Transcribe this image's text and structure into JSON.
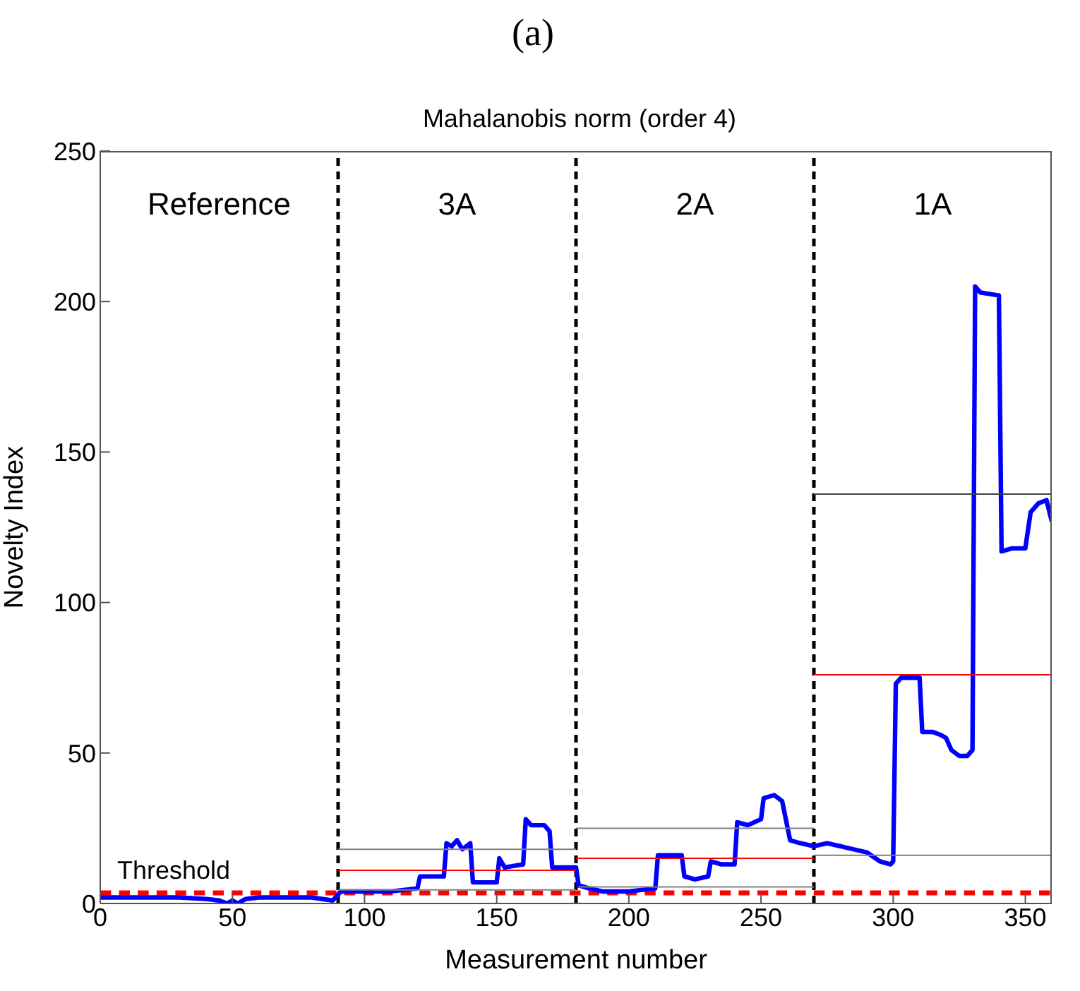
{
  "chart_data": {
    "type": "line",
    "title": "Mahalanobis norm (order 4)",
    "subtitle": "(a)",
    "xlabel": "Measurement number",
    "ylabel": "Novelty Index",
    "xlim": [
      0,
      360
    ],
    "ylim": [
      0,
      250
    ],
    "xticks": [
      0,
      50,
      100,
      150,
      200,
      250,
      300,
      350
    ],
    "yticks": [
      0,
      50,
      100,
      150,
      200,
      250
    ],
    "marker": "none",
    "line_style": "solid",
    "series": [
      {
        "color": "#0000ff",
        "x": [
          0,
          10,
          20,
          30,
          40,
          45,
          48,
          50,
          52,
          55,
          60,
          70,
          80,
          88,
          90,
          91,
          100,
          110,
          120,
          121,
          130,
          131,
          133,
          135,
          137,
          140,
          141,
          150,
          151,
          153,
          160,
          161,
          163,
          168,
          170,
          171,
          180,
          181,
          185,
          190,
          195,
          200,
          210,
          211,
          220,
          221,
          225,
          230,
          231,
          235,
          240,
          241,
          245,
          250,
          251,
          255,
          258,
          261,
          265,
          270,
          275,
          280,
          285,
          290,
          295,
          299,
          300,
          301,
          303,
          310,
          311,
          315,
          318,
          320,
          322,
          325,
          328,
          330,
          331,
          333,
          340,
          341,
          345,
          350,
          352,
          355,
          358,
          360
        ],
        "values": [
          2,
          2,
          2,
          2,
          1.5,
          1,
          0,
          1,
          0,
          1.5,
          2,
          2,
          2,
          1,
          3,
          4,
          4,
          4,
          5,
          9,
          9,
          20,
          19,
          21,
          18,
          20,
          7,
          7,
          15,
          12,
          13,
          28,
          26,
          26,
          24,
          12,
          12,
          6,
          5,
          4,
          4,
          4,
          5,
          16,
          16,
          9,
          8,
          9,
          14,
          13,
          13,
          27,
          26,
          28,
          35,
          36,
          34,
          21,
          20,
          19,
          20,
          19,
          18,
          17,
          14,
          13,
          14,
          73,
          75,
          75,
          57,
          57,
          56,
          55,
          51,
          49,
          49,
          51,
          205,
          203,
          202,
          117,
          118,
          118,
          130,
          133,
          134,
          127
        ]
      },
      {
        "type": "line",
        "color": "#808080",
        "x": [
          90,
          180
        ],
        "values": [
          18,
          18
        ]
      },
      {
        "type": "line",
        "color": "#ff0000",
        "x": [
          90,
          180
        ],
        "values": [
          11,
          11
        ]
      },
      {
        "type": "line",
        "color": "#808080",
        "x": [
          90,
          180
        ],
        "values": [
          4.5,
          4.5
        ]
      },
      {
        "type": "line",
        "color": "#808080",
        "x": [
          180,
          270
        ],
        "values": [
          25,
          25
        ]
      },
      {
        "type": "line",
        "color": "#ff0000",
        "x": [
          180,
          270
        ],
        "values": [
          15,
          15
        ]
      },
      {
        "type": "line",
        "color": "#808080",
        "x": [
          181,
          270
        ],
        "values": [
          5.5,
          5.5
        ]
      },
      {
        "type": "line",
        "color": "#404040",
        "x": [
          270,
          360
        ],
        "values": [
          136,
          136
        ]
      },
      {
        "type": "line",
        "color": "#ff0000",
        "x": [
          270,
          360
        ],
        "values": [
          76,
          76
        ]
      },
      {
        "type": "line",
        "color": "#808080",
        "x": [
          270,
          360
        ],
        "values": [
          16,
          16
        ]
      }
    ],
    "ref_lines": [
      {
        "axis": "y",
        "value": 3.5,
        "label": "Threshold",
        "color": "#ff0000",
        "line_style": "dashed"
      },
      {
        "axis": "x",
        "value": 90,
        "label": null,
        "color": "#000000",
        "line_style": "dashed"
      },
      {
        "axis": "x",
        "value": 180,
        "label": null,
        "color": "#000000",
        "line_style": "dashed"
      },
      {
        "axis": "x",
        "value": 270,
        "label": null,
        "color": "#000000",
        "line_style": "dashed"
      }
    ],
    "annotations": [
      "Reference",
      "3A",
      "2A",
      "1A"
    ]
  }
}
